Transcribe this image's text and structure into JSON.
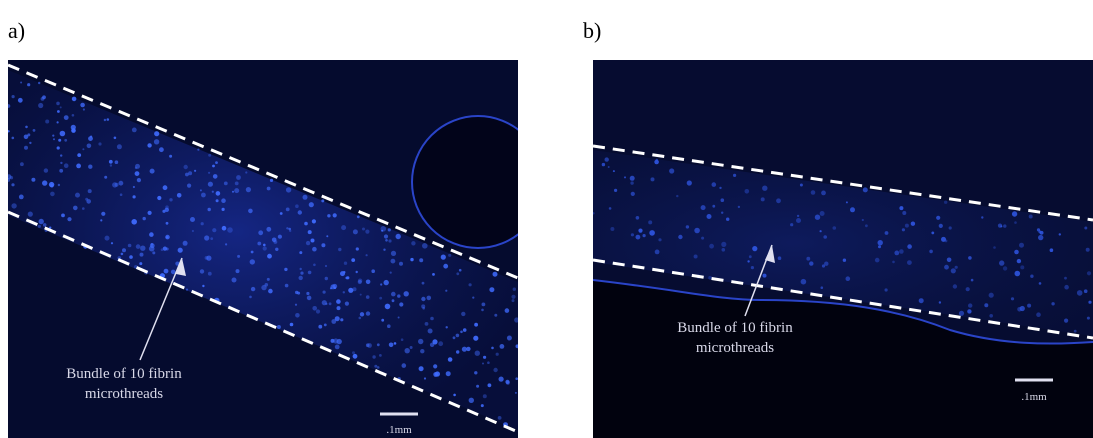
{
  "panels": [
    {
      "label": "a)",
      "annotation": [
        "Bundle of 10 fibrin",
        "microthreads"
      ],
      "scale_bar": ".1mm"
    },
    {
      "label": "b)",
      "annotation": [
        "Bundle of 10 fibrin",
        "microthreads"
      ],
      "scale_bar": ".1mm"
    }
  ]
}
